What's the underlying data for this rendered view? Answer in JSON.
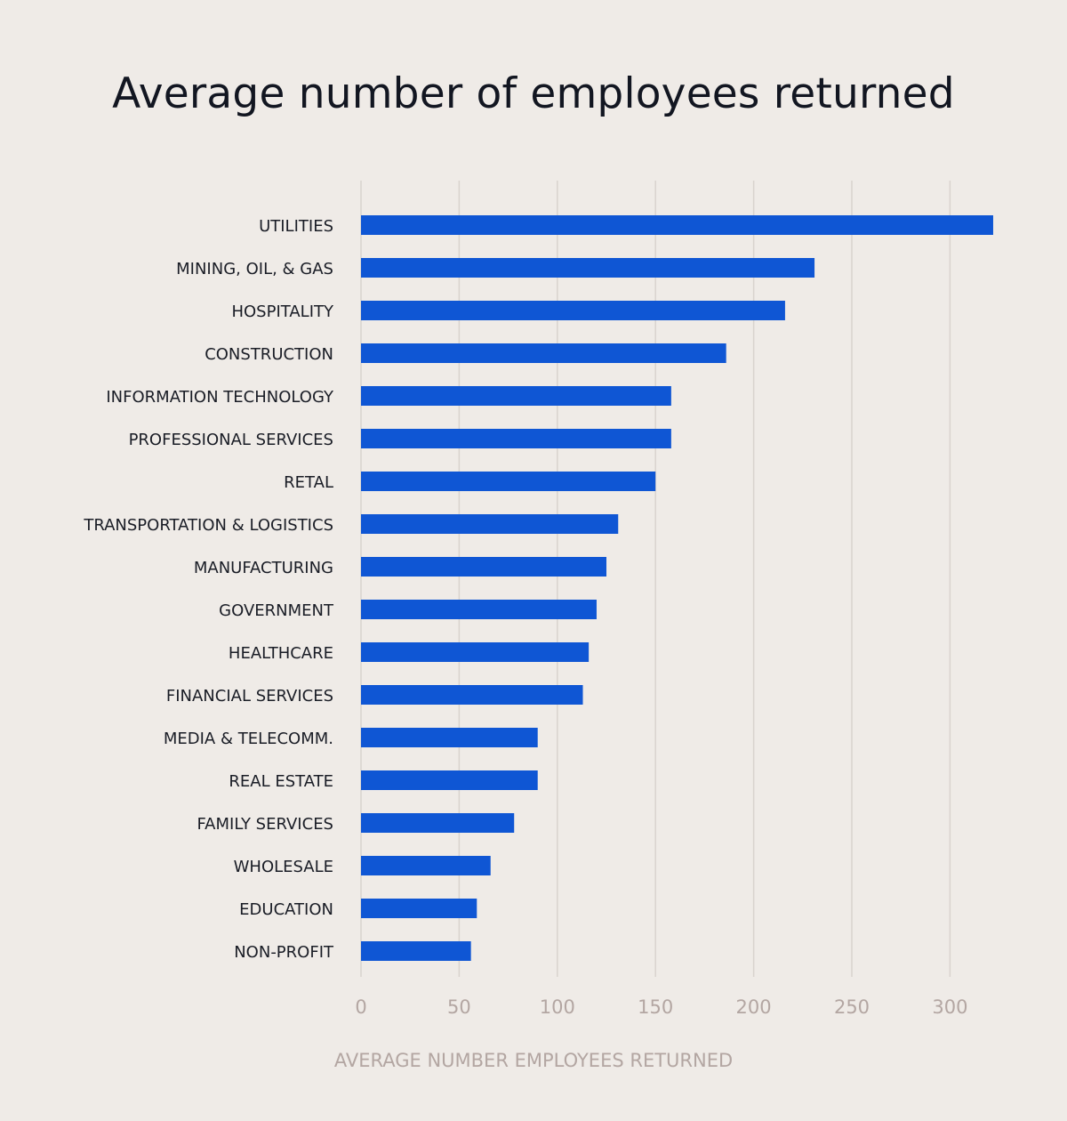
{
  "chart_data": {
    "type": "bar",
    "orientation": "horizontal",
    "title": "Average number of employees returned",
    "xlabel": "AVERAGE NUMBER EMPLOYEES RETURNED",
    "ylabel": "",
    "xlim": [
      0,
      320
    ],
    "ticks": [
      0,
      50,
      100,
      150,
      200,
      250,
      300
    ],
    "grid": true,
    "bar_color": "#0f56d4",
    "categories": [
      "UTILITIES",
      "MINING, OIL, & GAS",
      "HOSPITALITY",
      "CONSTRUCTION",
      "INFORMATION TECHNOLOGY",
      "PROFESSIONAL SERVICES",
      "RETAL",
      "TRANSPORTATION & LOGISTICS",
      "MANUFACTURING",
      "GOVERNMENT",
      "HEALTHCARE",
      "FINANCIAL SERVICES",
      "MEDIA & TELECOMM.",
      "REAL ESTATE",
      "FAMILY SERVICES",
      "WHOLESALE",
      "EDUCATION",
      "NON-PROFIT"
    ],
    "values": [
      322,
      231,
      216,
      186,
      158,
      158,
      150,
      131,
      125,
      120,
      116,
      113,
      90,
      90,
      78,
      66,
      59,
      56
    ]
  }
}
